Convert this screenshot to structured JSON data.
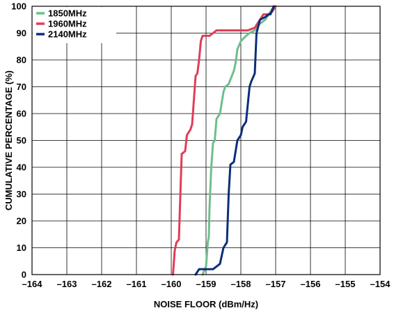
{
  "chart_data": {
    "type": "line",
    "title": "",
    "xlabel": "NOISE FLOOR (dBm/Hz)",
    "ylabel": "CUMULATIVE PERCENTAGE (%)",
    "xlim": [
      -164,
      -154
    ],
    "ylim": [
      0,
      100
    ],
    "x_ticks": [
      -164,
      -163,
      -162,
      -161,
      -160,
      -159,
      -158,
      -157,
      -156,
      -155,
      -154
    ],
    "x_tick_labels": [
      "–164",
      "–163",
      "–162",
      "–161",
      "–160",
      "–159",
      "–158",
      "–157",
      "–156",
      "–155",
      "–154"
    ],
    "y_ticks": [
      0,
      10,
      20,
      30,
      40,
      50,
      60,
      70,
      80,
      90,
      100
    ],
    "y_tick_labels": [
      "0",
      "10",
      "20",
      "30",
      "40",
      "50",
      "60",
      "70",
      "80",
      "90",
      "100"
    ],
    "grid": true,
    "legend_position": "top-left",
    "series": [
      {
        "name": "1850MHz",
        "color": "#6dbf8b",
        "points": [
          [
            -159.1,
            0
          ],
          [
            -159.0,
            3
          ],
          [
            -158.95,
            12
          ],
          [
            -158.92,
            14
          ],
          [
            -158.9,
            25
          ],
          [
            -158.85,
            40
          ],
          [
            -158.8,
            49
          ],
          [
            -158.75,
            50
          ],
          [
            -158.7,
            58
          ],
          [
            -158.6,
            60
          ],
          [
            -158.5,
            68
          ],
          [
            -158.45,
            70
          ],
          [
            -158.35,
            71
          ],
          [
            -158.2,
            76
          ],
          [
            -158.15,
            79
          ],
          [
            -158.1,
            84
          ],
          [
            -158.0,
            87
          ],
          [
            -157.85,
            89
          ],
          [
            -157.75,
            90
          ],
          [
            -157.6,
            91
          ],
          [
            -157.5,
            93
          ],
          [
            -157.3,
            95
          ],
          [
            -157.2,
            97
          ],
          [
            -157.1,
            99
          ],
          [
            -157.05,
            100
          ]
        ]
      },
      {
        "name": "1960MHz",
        "color": "#e03c5a",
        "points": [
          [
            -159.95,
            0
          ],
          [
            -159.9,
            9
          ],
          [
            -159.85,
            12
          ],
          [
            -159.78,
            13
          ],
          [
            -159.75,
            25
          ],
          [
            -159.7,
            45
          ],
          [
            -159.6,
            46
          ],
          [
            -159.55,
            52
          ],
          [
            -159.45,
            54
          ],
          [
            -159.4,
            56
          ],
          [
            -159.35,
            65
          ],
          [
            -159.3,
            74
          ],
          [
            -159.25,
            75
          ],
          [
            -159.2,
            80
          ],
          [
            -159.15,
            87
          ],
          [
            -159.1,
            89
          ],
          [
            -158.9,
            89
          ],
          [
            -158.8,
            90
          ],
          [
            -158.7,
            91
          ],
          [
            -157.8,
            91
          ],
          [
            -157.6,
            92
          ],
          [
            -157.5,
            94
          ],
          [
            -157.35,
            97
          ],
          [
            -157.2,
            97
          ],
          [
            -157.1,
            98
          ],
          [
            -157.0,
            100
          ]
        ]
      },
      {
        "name": "2140MHz",
        "color": "#0b2d7a",
        "points": [
          [
            -159.3,
            0
          ],
          [
            -159.2,
            2
          ],
          [
            -158.8,
            2
          ],
          [
            -158.7,
            3
          ],
          [
            -158.6,
            4
          ],
          [
            -158.5,
            10
          ],
          [
            -158.45,
            11
          ],
          [
            -158.4,
            12
          ],
          [
            -158.35,
            30
          ],
          [
            -158.3,
            41
          ],
          [
            -158.2,
            42
          ],
          [
            -158.15,
            46
          ],
          [
            -158.1,
            50
          ],
          [
            -158.0,
            52
          ],
          [
            -157.95,
            55
          ],
          [
            -157.85,
            57
          ],
          [
            -157.75,
            70
          ],
          [
            -157.7,
            72
          ],
          [
            -157.6,
            75
          ],
          [
            -157.55,
            90
          ],
          [
            -157.45,
            95
          ],
          [
            -157.3,
            96
          ],
          [
            -157.2,
            97
          ],
          [
            -157.15,
            97
          ],
          [
            -157.05,
            100
          ]
        ]
      }
    ]
  }
}
